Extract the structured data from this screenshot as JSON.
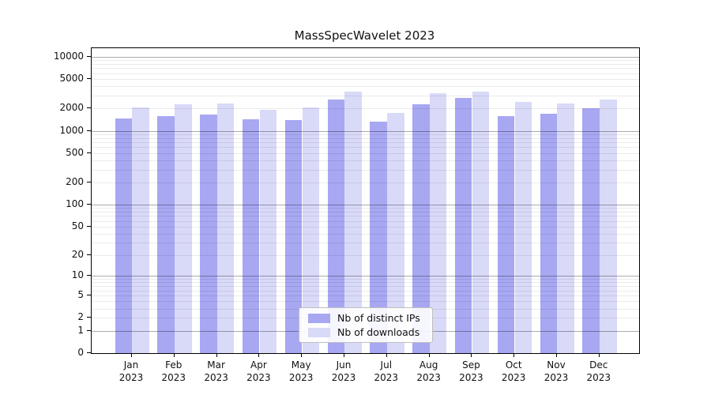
{
  "chart_data": {
    "type": "bar",
    "title": "MassSpecWavelet 2023",
    "scale": "log1p",
    "categories": [
      "Jan",
      "Feb",
      "Mar",
      "Apr",
      "May",
      "Jun",
      "Jul",
      "Aug",
      "Sep",
      "Oct",
      "Nov",
      "Dec"
    ],
    "year": "2023",
    "series": [
      {
        "name": "Nb of distinct IPs",
        "color": "#a7a7f2",
        "values": [
          1470,
          1570,
          1660,
          1420,
          1410,
          2660,
          1320,
          2300,
          2780,
          1590,
          1700,
          2000
        ]
      },
      {
        "name": "Nb of downloads",
        "color": "#d9d9f8",
        "values": [
          2080,
          2290,
          2320,
          1920,
          2070,
          3350,
          1740,
          3190,
          3380,
          2460,
          2360,
          2640
        ]
      }
    ],
    "yticks": [
      0,
      1,
      2,
      5,
      10,
      20,
      50,
      100,
      200,
      500,
      1000,
      2000,
      5000,
      10000
    ],
    "ylim": [
      0,
      14000
    ],
    "grid": "on",
    "legend_position": "inside-bottom-center",
    "colors": {
      "axis": "#000000",
      "major_grid": "#b5b5b5",
      "minor_grid": "#ebebeb",
      "legend_border": "#bfbfbf"
    }
  }
}
